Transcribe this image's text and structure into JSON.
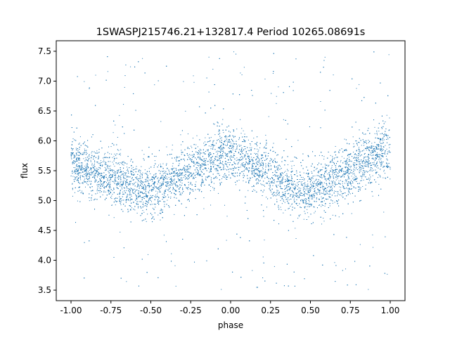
{
  "chart_data": {
    "type": "scatter",
    "title": "1SWASPJ215746.21+132817.4 Period 10265.08691s",
    "xlabel": "phase",
    "ylabel": "flux",
    "xlim": [
      -1.0925,
      1.0925
    ],
    "ylim": [
      3.324,
      7.676
    ],
    "xticks": [
      "-1.00",
      "-0.75",
      "-0.50",
      "-0.25",
      "0.00",
      "0.25",
      "0.50",
      "0.75",
      "1.00"
    ],
    "xtick_values": [
      -1.0,
      -0.75,
      -0.5,
      -0.25,
      0.0,
      0.25,
      0.5,
      0.75,
      1.0
    ],
    "yticks": [
      "3.5",
      "4.0",
      "4.5",
      "5.0",
      "5.5",
      "6.0",
      "6.5",
      "7.0",
      "7.5"
    ],
    "ytick_values": [
      3.5,
      4.0,
      4.5,
      5.0,
      5.5,
      6.0,
      6.5,
      7.0,
      7.5
    ],
    "grid": false,
    "marker_color": "#1f77b4",
    "x_range_of_points": [
      -1.0,
      1.0
    ],
    "y_range_of_points": [
      3.5,
      7.5
    ],
    "trend": {
      "x": [
        -1.0,
        -0.75,
        -0.55,
        -0.5,
        -0.25,
        -0.05,
        0.0,
        0.25,
        0.45,
        0.5,
        0.75,
        0.95,
        1.0
      ],
      "y": [
        5.6,
        5.4,
        5.15,
        5.15,
        5.5,
        5.8,
        5.78,
        5.45,
        5.15,
        5.15,
        5.5,
        5.8,
        5.75
      ]
    },
    "core_spread": 0.3
  }
}
